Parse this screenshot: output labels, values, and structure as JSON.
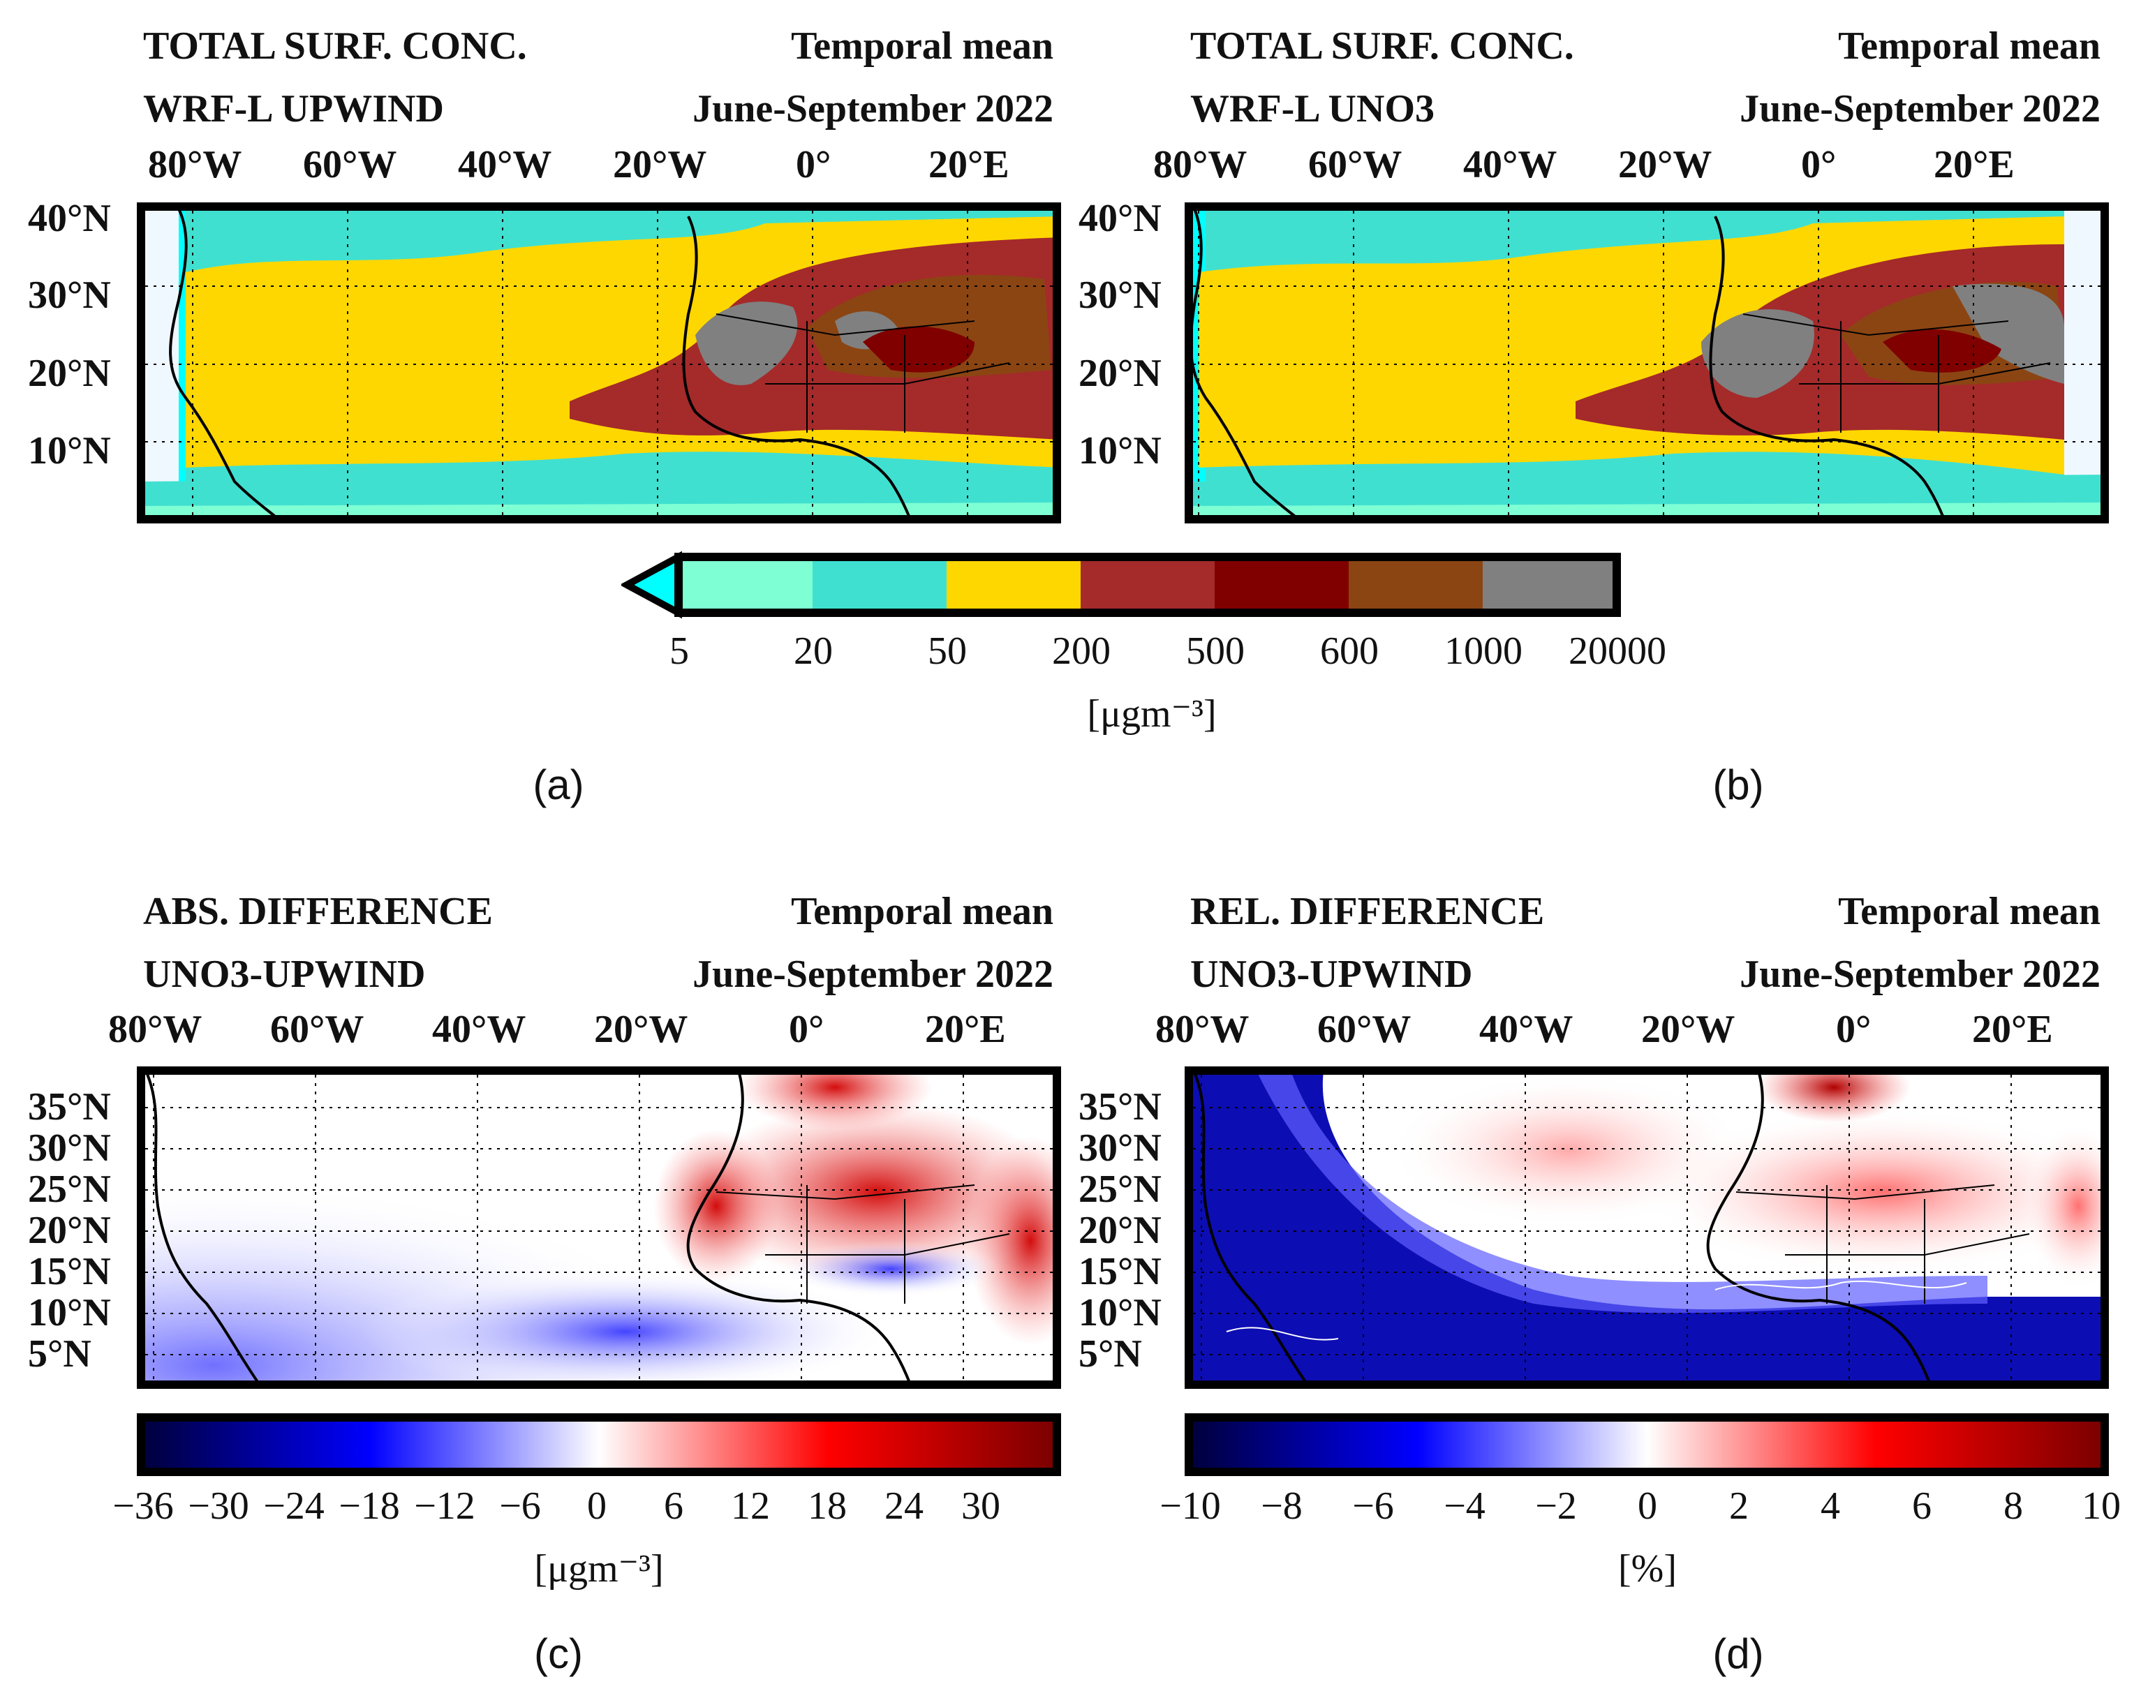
{
  "panels": [
    {
      "id": "a",
      "title_left": "TOTAL SURF. CONC.",
      "subtitle_left": "WRF-L UPWIND",
      "title_right": "Temporal mean",
      "subtitle_right": "June-September 2022",
      "label": "(a)",
      "lon_ticks": [
        "80°W",
        "60°W",
        "40°W",
        "20°W",
        "0°",
        "20°E"
      ],
      "lat_ticks": [
        "40°N",
        "30°N",
        "20°N",
        "10°N"
      ]
    },
    {
      "id": "b",
      "title_left": "TOTAL SURF. CONC.",
      "subtitle_left": "WRF-L UNO3",
      "title_right": "Temporal mean",
      "subtitle_right": "June-September 2022",
      "label": "(b)",
      "lon_ticks": [
        "80°W",
        "60°W",
        "40°W",
        "20°W",
        "0°",
        "20°E"
      ],
      "lat_ticks": [
        "40°N",
        "30°N",
        "20°N",
        "10°N"
      ]
    },
    {
      "id": "c",
      "title_left": "ABS. DIFFERENCE",
      "subtitle_left": "UNO3-UPWIND",
      "title_right": "Temporal mean",
      "subtitle_right": "June-September 2022",
      "label": "(c)",
      "lon_ticks": [
        "80°W",
        "60°W",
        "40°W",
        "20°W",
        "0°",
        "20°E"
      ],
      "lat_ticks": [
        "35°N",
        "30°N",
        "25°N",
        "20°N",
        "15°N",
        "10°N",
        "5°N"
      ]
    },
    {
      "id": "d",
      "title_left": "REL. DIFFERENCE",
      "subtitle_left": "UNO3-UPWIND",
      "title_right": "Temporal mean",
      "subtitle_right": "June-September 2022",
      "label": "(d)",
      "lon_ticks": [
        "80°W",
        "60°W",
        "40°W",
        "20°W",
        "0°",
        "20°E"
      ],
      "lat_ticks": [
        "35°N",
        "30°N",
        "25°N",
        "20°N",
        "15°N",
        "10°N",
        "5°N"
      ]
    }
  ],
  "colorbar_top": {
    "ticks": [
      "5",
      "20",
      "50",
      "200",
      "500",
      "600",
      "1000",
      "20000"
    ],
    "unit": "[μgm⁻³]",
    "colors": [
      "#7fffd4",
      "#40e0d0",
      "#ffd700",
      "#a52a2a",
      "#800000",
      "#8b4513",
      "#808080"
    ],
    "extend_color": "#00ffff"
  },
  "colorbar_c": {
    "ticks": [
      "−36",
      "−30",
      "−24",
      "−18",
      "−12",
      "−6",
      "0",
      "6",
      "12",
      "18",
      "24",
      "30"
    ],
    "unit": "[μgm⁻³]"
  },
  "colorbar_d": {
    "ticks": [
      "−10",
      "−8",
      "−6",
      "−4",
      "−2",
      "0",
      "2",
      "4",
      "6",
      "8",
      "10"
    ],
    "unit": "[%]"
  },
  "map_colors": {
    "ocean_low": "#40e0d0",
    "ocean_min": "#7fffd4",
    "edge": "#00ffff",
    "mid": "#ffd700",
    "high": "#a52a2a",
    "max": "#800000",
    "desert": "#8b4513",
    "grey": "#808080",
    "land_fill": "#f0f8ff"
  }
}
